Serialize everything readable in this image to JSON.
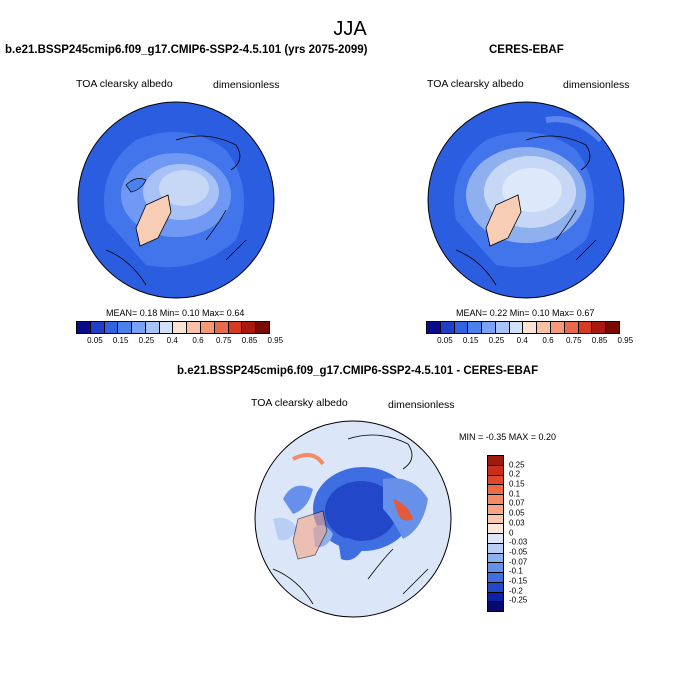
{
  "season": "JJA",
  "panels": {
    "model": {
      "title": "b.e21.BSSP245cmip6.f09_g17.CMIP6-SSP2-4.5.101 (yrs 2075-2099)",
      "variable": "TOA clearsky albedo",
      "units": "dimensionless",
      "stats": "MEAN=  0.18  Min=   0.10  Max=   0.64"
    },
    "obs": {
      "title": "CERES-EBAF",
      "variable": "TOA clearsky albedo",
      "units": "dimensionless",
      "stats": "MEAN=  0.22  Min=   0.10  Max=   0.67"
    },
    "diff": {
      "title": "b.e21.BSSP245cmip6.f09_g17.CMIP6-SSP2-4.5.101 - CERES-EBAF",
      "variable": "TOA clearsky albedo",
      "units": "dimensionless",
      "stats": "MIN = -0.35  MAX =   0.20"
    }
  },
  "albedo_colorbar": {
    "labels": [
      "0.05",
      "0.15",
      "0.25",
      "0.4",
      "0.6",
      "0.75",
      "0.85",
      "0.95"
    ],
    "colors": [
      "#0a0a8c",
      "#1f3fc8",
      "#2f63e0",
      "#4d80ef",
      "#7aa2f5",
      "#a8c2f7",
      "#d2e0fa",
      "#fbe3d4",
      "#f9c1a4",
      "#f59a75",
      "#e86a4b",
      "#d63b22",
      "#a81a0f",
      "#7a0a06"
    ]
  },
  "diff_colorbar": {
    "labels": [
      "0.25",
      "0.2",
      "0.15",
      "0.1",
      "0.07",
      "0.05",
      "0.03",
      "0",
      "-0.03",
      "-0.05",
      "-0.07",
      "-0.1",
      "-0.15",
      "-0.2",
      "-0.25"
    ],
    "colors": [
      "#9e1a0c",
      "#cc2d1a",
      "#e2462b",
      "#ef6a45",
      "#f48a63",
      "#f6a685",
      "#f8c7ae",
      "#fbe6da",
      "#dbe6f8",
      "#b9cef4",
      "#8fb0ef",
      "#6690ea",
      "#3f6ee2",
      "#2347c9",
      "#0f22a3",
      "#060a6e"
    ]
  },
  "map_colors": {
    "ocean_model": "#2b5de0",
    "ocean_obs": "#2b5de0",
    "arctic_light": "#c6d8f6",
    "arctic_mid": "#8fb0ef",
    "greenland": "#f7cdb6",
    "diff_bg": "#dbe6f8",
    "diff_dark": "#1f3fd0",
    "diff_mid": "#6690ea",
    "diff_red": "#e25b3a"
  }
}
